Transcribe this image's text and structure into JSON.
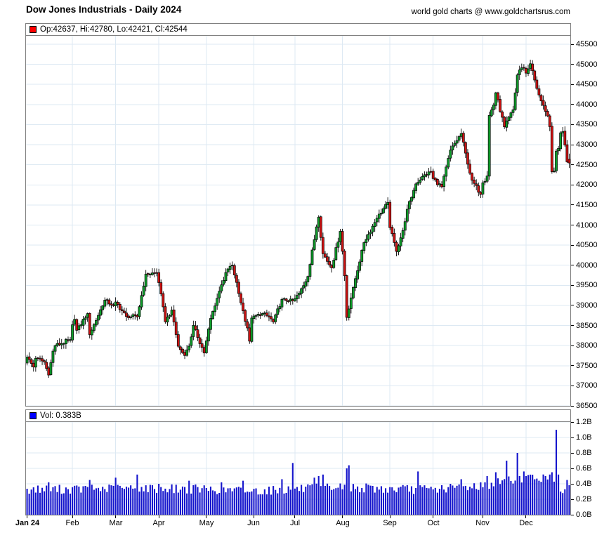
{
  "header": {
    "title": "Dow Jones Industrials - Daily 2024",
    "credit": "world gold charts @ www.goldchartsrus.com"
  },
  "price_pane": {
    "legend": "Op:42637, Hi:42780, Lo:42421, Cl:42544",
    "legend_swatch_color": "#ff0000"
  },
  "volume_pane": {
    "legend": "Vol: 0.383B",
    "legend_swatch_color": "#0000ff"
  },
  "chart_data": [
    {
      "type": "candlestick",
      "title": "Dow Jones Industrials - Daily 2024",
      "x_unit": "trading day of 2024",
      "days": 252,
      "ylim": [
        36500,
        45710
      ],
      "y_ticks": [
        45500,
        45000,
        44500,
        44000,
        43500,
        43000,
        42500,
        42000,
        41500,
        41000,
        40500,
        40000,
        39500,
        39000,
        38500,
        38000,
        37500,
        37000,
        36500
      ],
      "x_ticks": [
        {
          "label": "Jan 24",
          "day": 0,
          "bold": true
        },
        {
          "label": "Feb",
          "day": 21
        },
        {
          "label": "Mar",
          "day": 41
        },
        {
          "label": "Apr",
          "day": 61
        },
        {
          "label": "May",
          "day": 83
        },
        {
          "label": "Jun",
          "day": 105
        },
        {
          "label": "Jul",
          "day": 124
        },
        {
          "label": "Aug",
          "day": 146
        },
        {
          "label": "Sep",
          "day": 168
        },
        {
          "label": "Oct",
          "day": 188
        },
        {
          "label": "Nov",
          "day": 211
        },
        {
          "label": "Dec",
          "day": 231
        }
      ],
      "grid": true,
      "first_open": 37566,
      "last_candle": {
        "open": 42637,
        "high": 42780,
        "low": 42421,
        "close": 42544
      },
      "close_anchors": [
        [
          0,
          37715
        ],
        [
          3,
          37466
        ],
        [
          4,
          37683
        ],
        [
          8,
          37593
        ],
        [
          10,
          37267
        ],
        [
          12,
          37864
        ],
        [
          13,
          38002
        ],
        [
          16,
          38049
        ],
        [
          20,
          38150
        ],
        [
          21,
          38520
        ],
        [
          22,
          38654
        ],
        [
          23,
          38380
        ],
        [
          28,
          38797
        ],
        [
          29,
          38273
        ],
        [
          36,
          39132
        ],
        [
          40,
          38996
        ],
        [
          41,
          39087
        ],
        [
          46,
          38723
        ],
        [
          51,
          38715
        ],
        [
          55,
          39781
        ],
        [
          60,
          39807
        ],
        [
          61,
          39567
        ],
        [
          64,
          38596
        ],
        [
          67,
          38884
        ],
        [
          70,
          37983
        ],
        [
          73,
          37753
        ],
        [
          75,
          37986
        ],
        [
          77,
          38503
        ],
        [
          82,
          37816
        ],
        [
          85,
          38676
        ],
        [
          86,
          38852
        ],
        [
          90,
          39513
        ],
        [
          93,
          39908
        ],
        [
          95,
          40004
        ],
        [
          99,
          39065
        ],
        [
          102,
          38441
        ],
        [
          103,
          38111
        ],
        [
          104,
          38686
        ],
        [
          109,
          38799
        ],
        [
          112,
          38712
        ],
        [
          114,
          38589
        ],
        [
          118,
          39150
        ],
        [
          123,
          39119
        ],
        [
          124,
          39170
        ],
        [
          126,
          39308
        ],
        [
          130,
          39721
        ],
        [
          134,
          40954
        ],
        [
          135,
          41198
        ],
        [
          137,
          40288
        ],
        [
          141,
          39935
        ],
        [
          145,
          40843
        ],
        [
          146,
          40347
        ],
        [
          147,
          39737
        ],
        [
          148,
          38703
        ],
        [
          151,
          39446
        ],
        [
          156,
          40563
        ],
        [
          162,
          41175
        ],
        [
          167,
          41563
        ],
        [
          168,
          40937
        ],
        [
          171,
          40345
        ],
        [
          174,
          40862
        ],
        [
          176,
          41394
        ],
        [
          180,
          42025
        ],
        [
          183,
          42208
        ],
        [
          187,
          42330
        ],
        [
          188,
          42157
        ],
        [
          192,
          41954
        ],
        [
          196,
          42864
        ],
        [
          201,
          43276
        ],
        [
          204,
          42515
        ],
        [
          206,
          42114
        ],
        [
          210,
          41763
        ],
        [
          211,
          42052
        ],
        [
          213,
          42222
        ],
        [
          214,
          43730
        ],
        [
          216,
          43989
        ],
        [
          217,
          44293
        ],
        [
          221,
          43445
        ],
        [
          225,
          43870
        ],
        [
          227,
          44737
        ],
        [
          228,
          44860
        ],
        [
          230,
          44911
        ],
        [
          231,
          44782
        ],
        [
          233,
          45014
        ],
        [
          236,
          44402
        ],
        [
          240,
          43828
        ],
        [
          241,
          43717
        ],
        [
          242,
          43450
        ],
        [
          243,
          42327
        ],
        [
          244,
          42342
        ],
        [
          245,
          42840
        ],
        [
          246,
          42907
        ],
        [
          247,
          43297
        ],
        [
          248,
          43325
        ],
        [
          249,
          42992
        ],
        [
          250,
          42573
        ],
        [
          251,
          42544
        ]
      ],
      "colors": {
        "up": "#0d9e2a",
        "down": "#cf1212",
        "wick": "#000000",
        "grid": "#dde9f3",
        "border": "#808080"
      }
    },
    {
      "type": "bar",
      "name": "volume",
      "unit": "billions of shares",
      "days": 252,
      "ylim": [
        0,
        1.2
      ],
      "y_ticks": [
        1.2,
        1.0,
        0.8,
        0.6,
        0.4,
        0.2,
        0.0
      ],
      "grid": true,
      "base_anchors": [
        [
          0,
          0.33
        ],
        [
          21,
          0.33
        ],
        [
          41,
          0.34
        ],
        [
          61,
          0.34
        ],
        [
          83,
          0.33
        ],
        [
          105,
          0.31
        ],
        [
          124,
          0.33
        ],
        [
          146,
          0.36
        ],
        [
          168,
          0.33
        ],
        [
          188,
          0.33
        ],
        [
          211,
          0.38
        ],
        [
          225,
          0.45
        ],
        [
          231,
          0.48
        ],
        [
          245,
          0.48
        ],
        [
          251,
          0.38
        ]
      ],
      "spikes": {
        "10": 0.42,
        "29": 0.45,
        "41": 0.48,
        "51": 0.52,
        "61": 0.4,
        "75": 0.44,
        "90": 0.42,
        "100": 0.44,
        "118": 0.46,
        "123": 0.67,
        "133": 0.48,
        "135": 0.5,
        "137": 0.52,
        "148": 0.6,
        "149": 0.64,
        "181": 0.56,
        "196": 0.4,
        "201": 0.46,
        "213": 0.5,
        "217": 0.55,
        "222": 0.7,
        "227": 0.8,
        "230": 0.56,
        "240": 0.5,
        "242": 0.52,
        "243": 0.55,
        "245": 1.1,
        "246": 0.52,
        "247": 0.3,
        "248": 0.28,
        "249": 0.33,
        "250": 0.45,
        "251": 0.383
      },
      "last_volume": 0.383,
      "colors": {
        "bar": "#1414cc",
        "grid": "#dde9f3",
        "border": "#808080"
      }
    }
  ]
}
